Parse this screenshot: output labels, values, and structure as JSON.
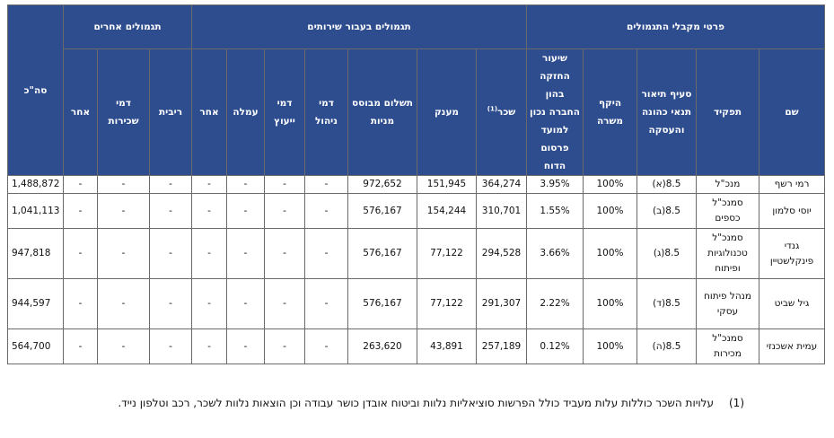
{
  "table": {
    "groups": {
      "recipients": "פרטי מקבלי התגמולים",
      "services": "תגמולים בעבור שירותים",
      "other": "תגמולים אחרים",
      "total": "סה\"כ"
    },
    "columns": {
      "name": "שם",
      "role": "תפקיד",
      "section": "סעיף תיאור תנאי כהונה והעסקה",
      "scope": "היקף משרה",
      "holding": "שיעור החזקה בהון החברה נכון למועד פרסום הדוח",
      "salary": "שכר",
      "salary_note": "(1)",
      "bonus": "מענק",
      "shares": "תשלום מבוסס מניות",
      "mgmt": "דמי ניהול",
      "consult": "דמי ייעוץ",
      "commission": "עמלה",
      "other_svc": "אחר",
      "interest": "ריבית",
      "rent": "דמי שכירות",
      "other2": "אחר"
    },
    "rows": [
      {
        "name": "רמי רשף",
        "role": "מנכ\"ל",
        "section": "8.5(א)",
        "scope": "100%",
        "holding": "3.95%",
        "salary": "364,274",
        "bonus": "151,945",
        "shares": "972,652",
        "mgmt": "-",
        "consult": "-",
        "commission": "-",
        "other_svc": "-",
        "interest": "-",
        "rent": "-",
        "other2": "-",
        "total": "1,488,872"
      },
      {
        "name": "יוסי סלמון",
        "role": "סמנכ\"ל כספים",
        "section": "8.5(ב)",
        "scope": "100%",
        "holding": "1.55%",
        "salary": "310,701",
        "bonus": "154,244",
        "shares": "576,167",
        "mgmt": "-",
        "consult": "-",
        "commission": "-",
        "other_svc": "-",
        "interest": "-",
        "rent": "-",
        "other2": "-",
        "total": "1,041,113"
      },
      {
        "name": "גנדי פינקלשטיין",
        "role": "סמנכ\"ל טכנולוגיות ופיתוח",
        "section": "8.5(ג)",
        "scope": "100%",
        "holding": "3.66%",
        "salary": "294,528",
        "bonus": "77,122",
        "shares": "576,167",
        "mgmt": "-",
        "consult": "-",
        "commission": "-",
        "other_svc": "-",
        "interest": "-",
        "rent": "-",
        "other2": "-",
        "total": "947,818"
      },
      {
        "name": "גיל שביט",
        "role": "מנהל פיתוח עסקי",
        "section": "8.5(ד)",
        "scope": "100%",
        "holding": "2.22%",
        "salary": "291,307",
        "bonus": "77,122",
        "shares": "576,167",
        "mgmt": "-",
        "consult": "-",
        "commission": "-",
        "other_svc": "-",
        "interest": "-",
        "rent": "-",
        "other2": "-",
        "total": "944,597"
      },
      {
        "name": "עמית אשכנזי",
        "role": "סמנכ\"ל מכירות",
        "section": "8.5(ה)",
        "scope": "100%",
        "holding": "0.12%",
        "salary": "257,189",
        "bonus": "43,891",
        "shares": "263,620",
        "mgmt": "-",
        "consult": "-",
        "commission": "-",
        "other_svc": "-",
        "interest": "-",
        "rent": "-",
        "other2": "-",
        "total": "564,700"
      }
    ]
  },
  "footnote": {
    "number": "(1)",
    "text": "עלויות השכר כוללות עלות מעביד כולל הפרשות סוציאליות נלוות וביטוח אובדן כושר עבודה וכן הוצאות נלוות לשכר, רכב וטלפון נייד."
  }
}
